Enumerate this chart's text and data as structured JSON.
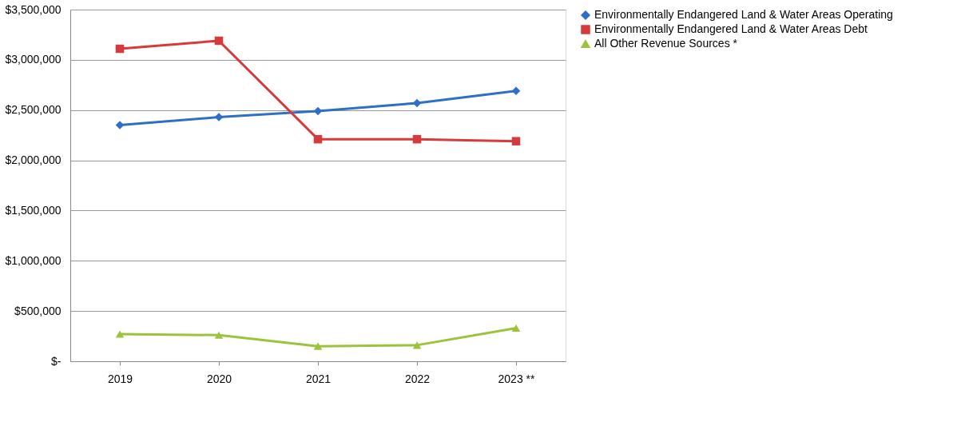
{
  "chart_data": {
    "type": "line",
    "categories": [
      "2019",
      "2020",
      "2021",
      "2022",
      "2023 **"
    ],
    "series": [
      {
        "name": "Environmentally Endangered Land & Water Areas Operating",
        "color": "#2e6fc7",
        "marker": "diamond",
        "values": [
          2350000,
          2430000,
          2490000,
          2570000,
          2690000
        ]
      },
      {
        "name": "Environmentally Endangered Land & Water Areas Debt",
        "color": "#d63a3a",
        "marker": "square",
        "values": [
          3110000,
          3190000,
          2210000,
          2210000,
          2190000
        ]
      },
      {
        "name": "All Other Revenue Sources *",
        "color": "#9dc33b",
        "marker": "triangle",
        "values": [
          270000,
          260000,
          150000,
          160000,
          330000
        ]
      }
    ],
    "ylim": [
      0,
      3500000
    ],
    "yticks": [
      {
        "value": 0,
        "label": "$-"
      },
      {
        "value": 500000,
        "label": "$500,000"
      },
      {
        "value": 1000000,
        "label": "$1,000,000"
      },
      {
        "value": 1500000,
        "label": "$1,500,000"
      },
      {
        "value": 2000000,
        "label": "$2,000,000"
      },
      {
        "value": 2500000,
        "label": "$2,500,000"
      },
      {
        "value": 3000000,
        "label": "$3,000,000"
      },
      {
        "value": 3500000,
        "label": "$3,500,000"
      }
    ],
    "grid": "y",
    "legend": "right",
    "line_style": "solid"
  }
}
